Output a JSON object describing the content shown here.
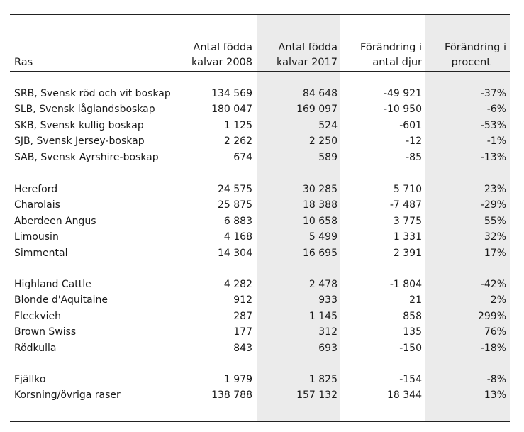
{
  "headers": {
    "ras": "Ras",
    "col2008_line1": "Antal födda",
    "col2008_line2": "kalvar 2008",
    "col2017_line1": "Antal födda",
    "col2017_line2": "kalvar 2017",
    "change_line1": "Förändring i",
    "change_line2": "antal djur",
    "pct_line1": "Förändring i",
    "pct_line2": "procent"
  },
  "groups": [
    {
      "rows": [
        {
          "ras": "SRB, Svensk röd och vit boskap",
          "y2008": "134 569",
          "y2017": "84 648",
          "change": "-49 921",
          "pct": "-37%"
        },
        {
          "ras": "SLB, Svensk låglandsboskap",
          "y2008": "180 047",
          "y2017": "169 097",
          "change": "-10 950",
          "pct": "-6%"
        },
        {
          "ras": "SKB, Svensk kullig boskap",
          "y2008": "1 125",
          "y2017": "524",
          "change": "-601",
          "pct": "-53%"
        },
        {
          "ras": "SJB, Svensk Jersey-boskap",
          "y2008": "2 262",
          "y2017": "2 250",
          "change": "-12",
          "pct": "-1%"
        },
        {
          "ras": "SAB, Svensk Ayrshire-boskap",
          "y2008": "674",
          "y2017": "589",
          "change": "-85",
          "pct": "-13%"
        }
      ]
    },
    {
      "rows": [
        {
          "ras": "Hereford",
          "y2008": "24 575",
          "y2017": "30 285",
          "change": "5 710",
          "pct": "23%"
        },
        {
          "ras": "Charolais",
          "y2008": "25 875",
          "y2017": "18 388",
          "change": "-7 487",
          "pct": "-29%"
        },
        {
          "ras": "Aberdeen Angus",
          "y2008": "6 883",
          "y2017": "10 658",
          "change": "3 775",
          "pct": "55%"
        },
        {
          "ras": "Limousin",
          "y2008": "4 168",
          "y2017": "5 499",
          "change": "1 331",
          "pct": "32%"
        },
        {
          "ras": "Simmental",
          "y2008": "14 304",
          "y2017": "16 695",
          "change": "2 391",
          "pct": "17%"
        }
      ]
    },
    {
      "rows": [
        {
          "ras": "Highland Cattle",
          "y2008": "4 282",
          "y2017": "2 478",
          "change": "-1 804",
          "pct": "-42%"
        },
        {
          "ras": "Blonde d'Aquitaine",
          "y2008": "912",
          "y2017": "933",
          "change": "21",
          "pct": "2%"
        },
        {
          "ras": "Fleckvieh",
          "y2008": "287",
          "y2017": "1 145",
          "change": "858",
          "pct": "299%"
        },
        {
          "ras": "Brown Swiss",
          "y2008": "177",
          "y2017": "312",
          "change": "135",
          "pct": "76%"
        },
        {
          "ras": "Rödkulla",
          "y2008": "843",
          "y2017": "693",
          "change": "-150",
          "pct": "-18%"
        }
      ]
    },
    {
      "rows": [
        {
          "ras": "Fjällko",
          "y2008": "1 979",
          "y2017": "1 825",
          "change": "-154",
          "pct": "-8%"
        },
        {
          "ras": "Korsning/övriga raser",
          "y2008": "138 788",
          "y2017": "157 132",
          "change": "18 344",
          "pct": "13%"
        }
      ]
    }
  ]
}
